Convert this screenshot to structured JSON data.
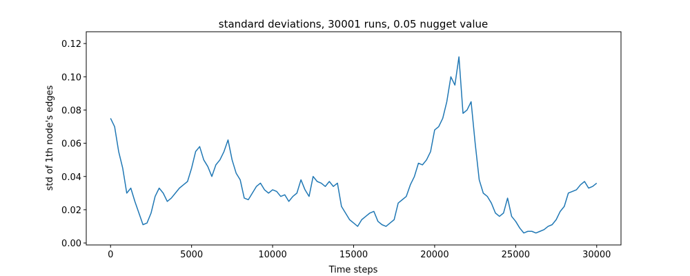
{
  "chart_data": {
    "type": "line",
    "title": "standard deviations, 30001 runs, 0.05 nugget value",
    "xlabel": "Time steps",
    "ylabel": "std of 1th node's edges",
    "x": [
      0,
      250,
      500,
      750,
      1000,
      1250,
      1500,
      1750,
      2000,
      2250,
      2500,
      2750,
      3000,
      3250,
      3500,
      3750,
      4000,
      4250,
      4500,
      4750,
      5000,
      5250,
      5500,
      5750,
      6000,
      6250,
      6500,
      6750,
      7000,
      7250,
      7500,
      7750,
      8000,
      8250,
      8500,
      8750,
      9000,
      9250,
      9500,
      9750,
      10000,
      10250,
      10500,
      10750,
      11000,
      11250,
      11500,
      11750,
      12000,
      12250,
      12500,
      12750,
      13000,
      13250,
      13500,
      13750,
      14000,
      14250,
      14500,
      14750,
      15000,
      15250,
      15500,
      15750,
      16000,
      16250,
      16500,
      16750,
      17000,
      17250,
      17500,
      17750,
      18000,
      18250,
      18500,
      18750,
      19000,
      19250,
      19500,
      19750,
      20000,
      20250,
      20500,
      20750,
      21000,
      21250,
      21500,
      21750,
      22000,
      22250,
      22500,
      22750,
      23000,
      23250,
      23500,
      23750,
      24000,
      24250,
      24500,
      24750,
      25000,
      25250,
      25500,
      25750,
      26000,
      26250,
      26500,
      26750,
      27000,
      27250,
      27500,
      27750,
      28000,
      28250,
      28500,
      28750,
      29000,
      29250,
      29500,
      29750,
      30000
    ],
    "series": [
      {
        "name": "std",
        "color": "#1f77b4",
        "values": [
          0.075,
          0.07,
          0.055,
          0.045,
          0.03,
          0.033,
          0.025,
          0.018,
          0.011,
          0.012,
          0.018,
          0.028,
          0.033,
          0.03,
          0.025,
          0.027,
          0.03,
          0.033,
          0.035,
          0.037,
          0.045,
          0.055,
          0.058,
          0.05,
          0.046,
          0.04,
          0.047,
          0.05,
          0.055,
          0.062,
          0.05,
          0.042,
          0.038,
          0.027,
          0.026,
          0.03,
          0.034,
          0.036,
          0.032,
          0.03,
          0.032,
          0.031,
          0.028,
          0.029,
          0.025,
          0.028,
          0.03,
          0.038,
          0.032,
          0.028,
          0.04,
          0.037,
          0.036,
          0.034,
          0.037,
          0.034,
          0.036,
          0.022,
          0.018,
          0.014,
          0.012,
          0.01,
          0.014,
          0.016,
          0.018,
          0.019,
          0.013,
          0.011,
          0.01,
          0.012,
          0.014,
          0.024,
          0.026,
          0.028,
          0.035,
          0.04,
          0.048,
          0.047,
          0.05,
          0.055,
          0.068,
          0.07,
          0.075,
          0.085,
          0.1,
          0.095,
          0.112,
          0.078,
          0.08,
          0.085,
          0.06,
          0.038,
          0.03,
          0.028,
          0.024,
          0.018,
          0.016,
          0.018,
          0.027,
          0.016,
          0.013,
          0.009,
          0.006,
          0.007,
          0.007,
          0.006,
          0.007,
          0.008,
          0.01,
          0.011,
          0.014,
          0.019,
          0.022,
          0.03,
          0.031,
          0.032,
          0.035,
          0.037,
          0.033,
          0.034,
          0.036
        ]
      }
    ],
    "xlim": [
      -1500,
      31500
    ],
    "ylim": [
      -0.0012,
      0.1271
    ],
    "xticks": [
      0,
      5000,
      10000,
      15000,
      20000,
      25000,
      30000
    ],
    "yticks": [
      {
        "value": 0,
        "label": "0.00"
      },
      {
        "value": 0.02,
        "label": "0.02"
      },
      {
        "value": 0.04,
        "label": "0.04"
      },
      {
        "value": 0.06,
        "label": "0.06"
      },
      {
        "value": 0.08,
        "label": "0.08"
      },
      {
        "value": 0.1,
        "label": "0.10"
      },
      {
        "value": 0.12,
        "label": "0.12"
      }
    ]
  }
}
